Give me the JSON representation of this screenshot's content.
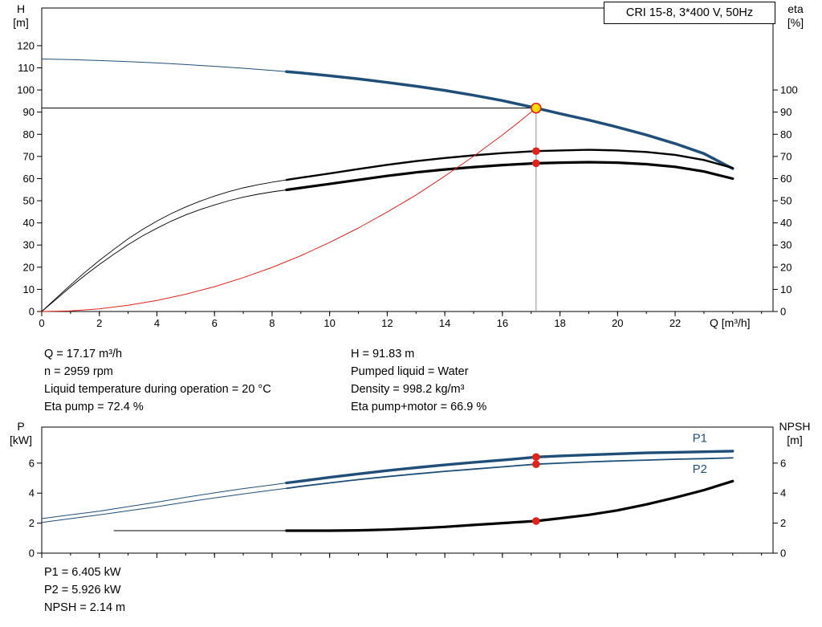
{
  "title_box": "CRI 15-8, 3*400 V, 50Hz",
  "colors": {
    "blue": "#1f4e79",
    "black": "#000000",
    "red": "#e2231a",
    "gray": "#8f8f8f",
    "op_yellow": "#ffd800"
  },
  "axis_labels": {
    "top_left_1": "H",
    "top_left_2": "[m]",
    "top_right_1": "eta",
    "top_right_2": "[%]",
    "x": "Q [m³/h]",
    "bottom_left_1": "P",
    "bottom_left_2": "[kW]",
    "bottom_right_1": "NPSH",
    "bottom_right_2": "[m]"
  },
  "info_mid_left": [
    "Q = 17.17 m³/h",
    "n = 2959 rpm",
    "Liquid temperature during operation = 20 °C",
    "Eta pump = 72.4 %"
  ],
  "info_mid_right": [
    "H = 91.83 m",
    "Pumped liquid = Water",
    "Density = 998.2 kg/m³",
    "Eta pump+motor = 66.9 %"
  ],
  "info_bottom": [
    "P1 = 6.405 kW",
    "P2 = 5.926 kW",
    "NPSH = 2.14 m"
  ],
  "chart_data": [
    {
      "type": "line",
      "name": "qh-eta-chart",
      "title": "CRI 15-8, 3*400 V, 50Hz",
      "x_axis": {
        "label": "Q [m³/h]",
        "min": 0,
        "max": 25.4,
        "ticks": [
          0,
          2,
          4,
          6,
          8,
          10,
          12,
          14,
          16,
          18,
          20,
          22
        ],
        "minor_step": 1,
        "show_tick_labels": true
      },
      "y_left": {
        "label": "H [m]",
        "min": 0,
        "max": 137,
        "ticks": [
          0,
          10,
          20,
          30,
          40,
          50,
          60,
          70,
          80,
          90,
          100,
          110,
          120
        ]
      },
      "y_right": {
        "label": "eta [%]",
        "ticks": [
          0,
          10,
          20,
          30,
          40,
          50,
          60,
          70,
          80,
          90,
          100
        ]
      },
      "series": [
        {
          "name": "head-curve",
          "color": "blue",
          "thick_from": 8.5,
          "thin_width": 1,
          "thick_width": 3.5,
          "points": [
            [
              0,
              114
            ],
            [
              1,
              113.7
            ],
            [
              2,
              113.3
            ],
            [
              3,
              112.8
            ],
            [
              4,
              112.2
            ],
            [
              5,
              111.5
            ],
            [
              6,
              110.7
            ],
            [
              7,
              109.8
            ],
            [
              8,
              108.8
            ],
            [
              8.5,
              108.3
            ],
            [
              9,
              107.7
            ],
            [
              10,
              106.4
            ],
            [
              11,
              105
            ],
            [
              12,
              103.4
            ],
            [
              13,
              101.7
            ],
            [
              14,
              99.8
            ],
            [
              15,
              97.6
            ],
            [
              16,
              95.2
            ],
            [
              17.17,
              91.83
            ],
            [
              18,
              89.3
            ],
            [
              19,
              86.4
            ],
            [
              20,
              83.2
            ],
            [
              21,
              79.7
            ],
            [
              22,
              75.8
            ],
            [
              23,
              71.3
            ],
            [
              24,
              64.5
            ]
          ]
        },
        {
          "name": "eta-pump-curve",
          "color": "black",
          "thick_from": 8.5,
          "thin_width": 0.9,
          "thick_width": 2.4,
          "points": [
            [
              0,
              0
            ],
            [
              0.5,
              6
            ],
            [
              1,
              12
            ],
            [
              1.5,
              17.7
            ],
            [
              2,
              23
            ],
            [
              2.5,
              28
            ],
            [
              3,
              32.8
            ],
            [
              3.5,
              37
            ],
            [
              4,
              40.8
            ],
            [
              4.5,
              44.2
            ],
            [
              5,
              47.2
            ],
            [
              5.5,
              49.8
            ],
            [
              6,
              52.1
            ],
            [
              6.5,
              54.1
            ],
            [
              7,
              55.8
            ],
            [
              7.5,
              57.2
            ],
            [
              8,
              58.4
            ],
            [
              8.5,
              59.4
            ],
            [
              9,
              60.4
            ],
            [
              10,
              62.3
            ],
            [
              11,
              64.3
            ],
            [
              12,
              66.2
            ],
            [
              13,
              67.9
            ],
            [
              14,
              69.3
            ],
            [
              15,
              70.5
            ],
            [
              16,
              71.5
            ],
            [
              17.17,
              72.4
            ],
            [
              18,
              72.7
            ],
            [
              19,
              73
            ],
            [
              20,
              72.7
            ],
            [
              21,
              72
            ],
            [
              22,
              70.7
            ],
            [
              23,
              68.4
            ],
            [
              24,
              64.8
            ]
          ]
        },
        {
          "name": "eta-pump-motor-curve",
          "color": "black",
          "thick_from": 8.5,
          "thin_width": 0.9,
          "thick_width": 3.2,
          "points": [
            [
              0,
              0
            ],
            [
              0.5,
              5.5
            ],
            [
              1,
              11.1
            ],
            [
              1.5,
              16.3
            ],
            [
              2,
              21.2
            ],
            [
              2.5,
              25.8
            ],
            [
              3,
              30.2
            ],
            [
              3.5,
              34.1
            ],
            [
              4,
              37.6
            ],
            [
              4.5,
              40.8
            ],
            [
              5,
              43.6
            ],
            [
              5.5,
              46
            ],
            [
              6,
              48.1
            ],
            [
              6.5,
              50
            ],
            [
              7,
              51.6
            ],
            [
              7.5,
              52.9
            ],
            [
              8,
              54
            ],
            [
              8.5,
              54.9
            ],
            [
              9,
              55.8
            ],
            [
              10,
              57.6
            ],
            [
              11,
              59.4
            ],
            [
              12,
              61.2
            ],
            [
              13,
              62.8
            ],
            [
              14,
              64.1
            ],
            [
              15,
              65.2
            ],
            [
              16,
              66.1
            ],
            [
              17.17,
              66.9
            ],
            [
              18,
              67.2
            ],
            [
              19,
              67.4
            ],
            [
              20,
              67.2
            ],
            [
              21,
              66.5
            ],
            [
              22,
              65.3
            ],
            [
              23,
              63.2
            ],
            [
              24,
              60
            ]
          ]
        },
        {
          "name": "system-curve",
          "color": "red",
          "width": 1,
          "points": [
            [
              0,
              0
            ],
            [
              1,
              0.3
            ],
            [
              2,
              1.2
            ],
            [
              3,
              2.8
            ],
            [
              4,
              5
            ],
            [
              5,
              7.8
            ],
            [
              6,
              11.2
            ],
            [
              7,
              15.3
            ],
            [
              8,
              19.9
            ],
            [
              9,
              25.2
            ],
            [
              10,
              31.2
            ],
            [
              11,
              37.7
            ],
            [
              12,
              44.9
            ],
            [
              13,
              52.6
            ],
            [
              14,
              61.1
            ],
            [
              15,
              70.1
            ],
            [
              16,
              79.7
            ],
            [
              16.6,
              85.8
            ],
            [
              17.17,
              91.83
            ]
          ]
        }
      ],
      "guides": [
        {
          "from": [
            0,
            91.83
          ],
          "to": [
            17.17,
            91.83
          ],
          "color": "black",
          "width": 0.9
        },
        {
          "from": [
            17.17,
            0
          ],
          "to": [
            17.17,
            91.83
          ],
          "color": "gray",
          "width": 1
        }
      ],
      "markers": [
        {
          "name": "eta-pump-point",
          "at": [
            17.17,
            72.4
          ],
          "r": 4.8,
          "fill": "red"
        },
        {
          "name": "eta-pump-motor-point",
          "at": [
            17.17,
            66.9
          ],
          "r": 4.8,
          "fill": "red"
        },
        {
          "name": "operating-point",
          "at": [
            17.17,
            91.83
          ],
          "r": 6,
          "fill": "op_yellow",
          "stroke": "red",
          "stroke_width": 1.6,
          "interactable": true
        }
      ]
    },
    {
      "type": "line",
      "name": "power-npsh-chart",
      "x_axis": {
        "min": 0,
        "max": 25.4,
        "ticks": [
          0,
          2,
          4,
          6,
          8,
          10,
          12,
          14,
          16,
          18,
          20,
          22
        ],
        "minor_step": 1,
        "show_tick_labels": false
      },
      "y_left": {
        "label": "P [kW]",
        "min": 0,
        "max": 8.4,
        "ticks": [
          0,
          2,
          4,
          6
        ]
      },
      "y_right": {
        "label": "NPSH [m]",
        "ticks": [
          0,
          2,
          4,
          6
        ]
      },
      "series": [
        {
          "name": "p1-curve",
          "label": "P1",
          "label_at": [
            22.6,
            7.4
          ],
          "color": "blue",
          "thick_from": 8.5,
          "thin_width": 1,
          "thick_width": 3.4,
          "points": [
            [
              0,
              2.3
            ],
            [
              1,
              2.55
            ],
            [
              2,
              2.8
            ],
            [
              3,
              3.1
            ],
            [
              4,
              3.4
            ],
            [
              5,
              3.72
            ],
            [
              6,
              4.02
            ],
            [
              7,
              4.3
            ],
            [
              8,
              4.55
            ],
            [
              8.5,
              4.68
            ],
            [
              9,
              4.8
            ],
            [
              10,
              5.05
            ],
            [
              11,
              5.28
            ],
            [
              12,
              5.5
            ],
            [
              13,
              5.7
            ],
            [
              14,
              5.88
            ],
            [
              15,
              6.05
            ],
            [
              16,
              6.2
            ],
            [
              17.17,
              6.405
            ],
            [
              18,
              6.48
            ],
            [
              19,
              6.55
            ],
            [
              20,
              6.62
            ],
            [
              21,
              6.68
            ],
            [
              22,
              6.72
            ],
            [
              23,
              6.76
            ],
            [
              24,
              6.8
            ]
          ]
        },
        {
          "name": "p2-curve",
          "label": "P2",
          "label_at": [
            22.6,
            5.35
          ],
          "color": "blue",
          "thick_from": 8.5,
          "thin_width": 1,
          "thick_width": 1.8,
          "points": [
            [
              0,
              2.05
            ],
            [
              1,
              2.3
            ],
            [
              2,
              2.55
            ],
            [
              3,
              2.82
            ],
            [
              4,
              3.1
            ],
            [
              5,
              3.4
            ],
            [
              6,
              3.68
            ],
            [
              7,
              3.95
            ],
            [
              8,
              4.2
            ],
            [
              8.5,
              4.32
            ],
            [
              9,
              4.45
            ],
            [
              10,
              4.68
            ],
            [
              11,
              4.9
            ],
            [
              12,
              5.1
            ],
            [
              13,
              5.28
            ],
            [
              14,
              5.45
            ],
            [
              15,
              5.6
            ],
            [
              16,
              5.75
            ],
            [
              17.17,
              5.926
            ],
            [
              18,
              6
            ],
            [
              19,
              6.08
            ],
            [
              20,
              6.15
            ],
            [
              21,
              6.2
            ],
            [
              22,
              6.26
            ],
            [
              23,
              6.3
            ],
            [
              24,
              6.35
            ]
          ]
        },
        {
          "name": "npsh-curve",
          "color": "black",
          "thick_from": 8.5,
          "thin_width": 0.9,
          "thick_width": 3.2,
          "points": [
            [
              2.5,
              1.5
            ],
            [
              4,
              1.5
            ],
            [
              6,
              1.5
            ],
            [
              8,
              1.5
            ],
            [
              8.5,
              1.5
            ],
            [
              10,
              1.5
            ],
            [
              11,
              1.52
            ],
            [
              12,
              1.57
            ],
            [
              13,
              1.65
            ],
            [
              14,
              1.75
            ],
            [
              15,
              1.88
            ],
            [
              16,
              2
            ],
            [
              17.17,
              2.14
            ],
            [
              18,
              2.32
            ],
            [
              19,
              2.55
            ],
            [
              20,
              2.85
            ],
            [
              21,
              3.25
            ],
            [
              22,
              3.7
            ],
            [
              23,
              4.2
            ],
            [
              24,
              4.8
            ]
          ]
        }
      ],
      "guides": [],
      "markers": [
        {
          "name": "p1-point",
          "at": [
            17.17,
            6.405
          ],
          "r": 4.8,
          "fill": "red"
        },
        {
          "name": "p2-point",
          "at": [
            17.17,
            5.926
          ],
          "r": 4.8,
          "fill": "red"
        },
        {
          "name": "npsh-point",
          "at": [
            17.17,
            2.14
          ],
          "r": 4.8,
          "fill": "red"
        }
      ]
    }
  ]
}
